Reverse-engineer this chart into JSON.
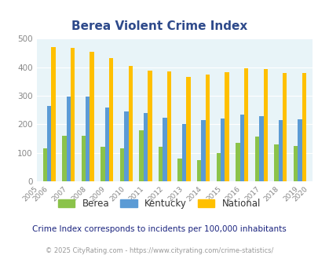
{
  "title": "Berea Violent Crime Index",
  "plot_years": [
    2006,
    2007,
    2008,
    2009,
    2010,
    2011,
    2012,
    2013,
    2014,
    2015,
    2016,
    2017,
    2018,
    2019
  ],
  "all_years": [
    2005,
    2006,
    2007,
    2008,
    2009,
    2010,
    2011,
    2012,
    2013,
    2014,
    2015,
    2016,
    2017,
    2018,
    2019,
    2020
  ],
  "berea": [
    115,
    160,
    160,
    120,
    115,
    180,
    120,
    80,
    75,
    98,
    135,
    158,
    130,
    125
  ],
  "kentucky": [
    265,
    298,
    298,
    260,
    245,
    240,
    223,
    202,
    215,
    220,
    235,
    230,
    215,
    217
  ],
  "national": [
    470,
    468,
    455,
    432,
    405,
    388,
    387,
    367,
    376,
    384,
    398,
    394,
    380,
    380
  ],
  "berea_color": "#8bc34a",
  "kentucky_color": "#5b9bd5",
  "national_color": "#ffc000",
  "bg_color": "#e8f4f8",
  "ylim": [
    0,
    500
  ],
  "yticks": [
    0,
    100,
    200,
    300,
    400,
    500
  ],
  "footnote1": "Crime Index corresponds to incidents per 100,000 inhabitants",
  "footnote2": "© 2025 CityRating.com - https://www.cityrating.com/crime-statistics/",
  "legend_labels": [
    "Berea",
    "Kentucky",
    "National"
  ],
  "title_color": "#2e4a8b",
  "footnote1_color": "#1a237e",
  "footnote2_color": "#999999",
  "tick_color": "#888888"
}
